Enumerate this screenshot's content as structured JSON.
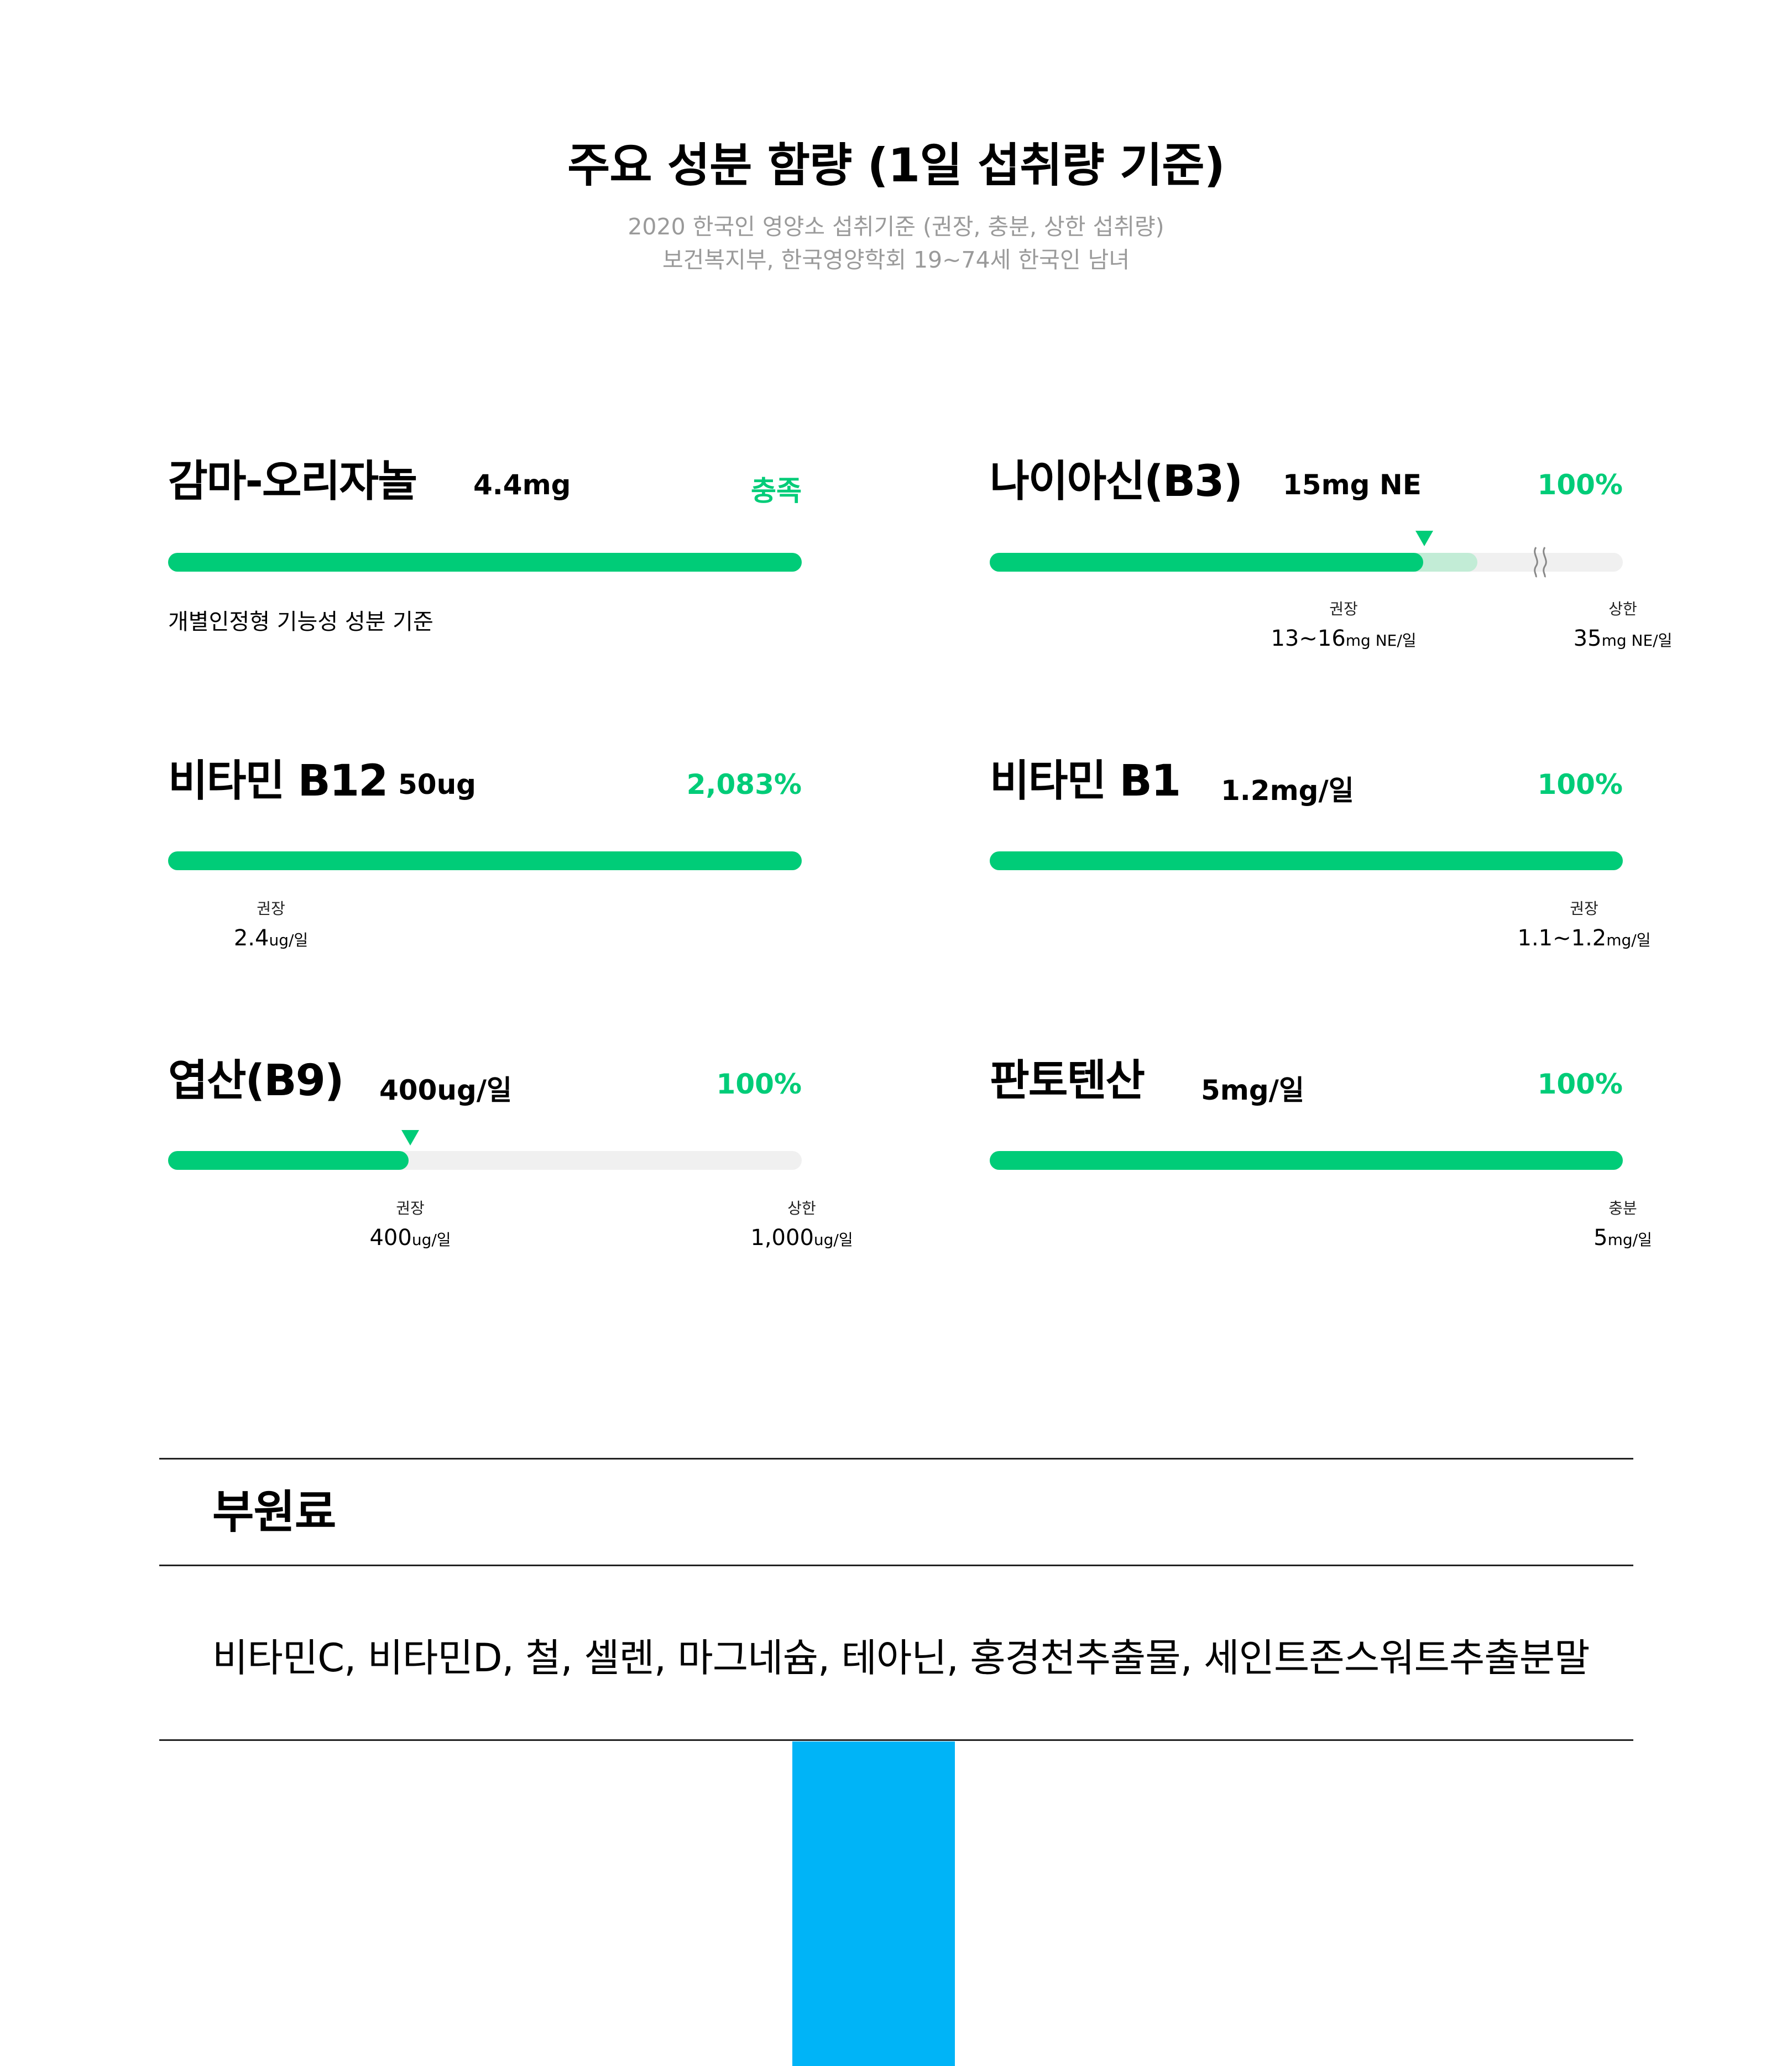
{
  "header": {
    "title": "주요 성분 함량 (1일 섭취량 기준)",
    "subtitle_line1": "2020 한국인 영양소 섭취기준 (권장, 충분, 상한 섭취량)",
    "subtitle_line2": "보건복지부, 한국영양학회  19~74세 한국인 남녀"
  },
  "nutrients": [
    {
      "name": "감마-오리자놀",
      "amount": "4.4mg",
      "percent": "충족",
      "fill_fraction": 1.0,
      "note": "개별인정형 기능성 성분 기준"
    },
    {
      "name": "나이아신(B3)",
      "amount": "15mg NE",
      "percent": "100%",
      "fill_fraction": 0.685,
      "light_fill_fraction": 0.77,
      "refs": [
        {
          "label": "권장",
          "value": "13~16",
          "unit": "mg NE/일"
        },
        {
          "label": "상한",
          "value": "35",
          "unit": "mg NE/일"
        }
      ]
    },
    {
      "name": "비타민 B12",
      "amount": "50ug",
      "percent": "2,083%",
      "fill_fraction": 1.0,
      "refs": [
        {
          "label": "권장",
          "value": "2.4",
          "unit": "ug/일"
        }
      ]
    },
    {
      "name": "비타민 B1",
      "amount": "1.2mg/일",
      "percent": "100%",
      "fill_fraction": 1.0,
      "refs": [
        {
          "label": "권장",
          "value": "1.1~1.2",
          "unit": "mg/일"
        }
      ]
    },
    {
      "name": "엽산(B9)",
      "amount": "400ug/일",
      "percent": "100%",
      "fill_fraction": 0.38,
      "refs": [
        {
          "label": "권장",
          "value": "400",
          "unit": "ug/일"
        },
        {
          "label": "상한",
          "value": "1,000",
          "unit": "ug/일"
        }
      ]
    },
    {
      "name": "판토텐산",
      "amount": "5mg/일",
      "percent": "100%",
      "fill_fraction": 1.0,
      "refs": [
        {
          "label": "충분",
          "value": "5",
          "unit": "mg/일"
        }
      ]
    }
  ],
  "sub_ingredients": {
    "title": "부원료",
    "text": "비타민C, 비타민D, 철, 셀렌, 마그네슘, 테아닌, 홍경천추출물, 세인트존스워트추출분말"
  },
  "colors": {
    "accent_green": "#00cc78",
    "light_green": "#c2ecd6",
    "track_gray": "#f0f0f0",
    "subtitle_gray": "#9a9a9a",
    "blue_block": "#00b4f7"
  }
}
